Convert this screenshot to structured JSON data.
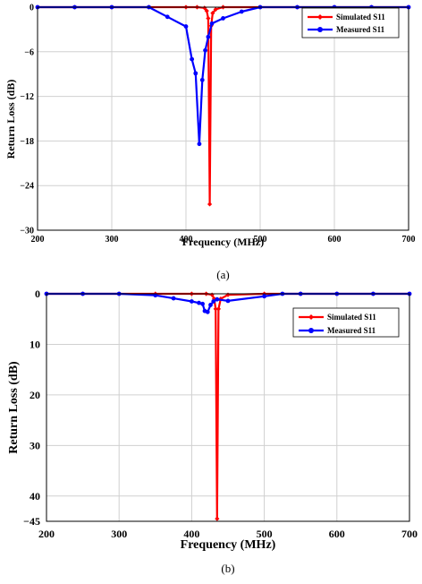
{
  "chart_data": [
    {
      "type": "line",
      "caption": "(a)",
      "xlabel": "Frequency (MHz)",
      "ylabel": "Return Loss (dB)",
      "xlim": [
        200,
        700
      ],
      "ylim": [
        -30,
        0
      ],
      "xticks": [
        200,
        300,
        400,
        500,
        600,
        700
      ],
      "yticks": [
        0,
        -6,
        -12,
        -18,
        -24,
        -30
      ],
      "grid": true,
      "legend_position": "top-right",
      "series": [
        {
          "name": "Simulated S11",
          "color": "#ff0000",
          "marker": "diamond",
          "x": [
            200,
            250,
            300,
            350,
            400,
            415,
            425,
            428,
            430,
            432,
            434,
            436,
            440,
            450,
            500,
            550,
            600,
            650,
            700
          ],
          "y": [
            0,
            0,
            0,
            0,
            0,
            0,
            -0.1,
            -0.5,
            -1.5,
            -26.5,
            -2.5,
            -0.8,
            -0.3,
            0,
            0,
            0,
            0,
            0,
            0
          ]
        },
        {
          "name": "Measured S11",
          "color": "#0000ff",
          "marker": "circle",
          "x": [
            200,
            250,
            300,
            350,
            375,
            400,
            408,
            413,
            418,
            422,
            426,
            430,
            435,
            450,
            475,
            500,
            550,
            600,
            650,
            700
          ],
          "y": [
            0,
            0,
            0,
            0,
            -1.3,
            -2.6,
            -7,
            -8.9,
            -18.4,
            -9.8,
            -5.8,
            -4,
            -2.2,
            -1.5,
            -0.6,
            0,
            0,
            0,
            0,
            0
          ]
        }
      ]
    },
    {
      "type": "line",
      "caption": "(b)",
      "xlabel": "Frequency (MHz)",
      "ylabel": "Return Loss (dB)",
      "xlim": [
        200,
        700
      ],
      "ylim": [
        0,
        45
      ],
      "ytick_direction": "increasing downward",
      "xticks": [
        200,
        300,
        400,
        500,
        600,
        700
      ],
      "yticks": [
        0,
        10,
        20,
        30,
        40,
        45
      ],
      "grid": true,
      "legend_position": "top-right",
      "series": [
        {
          "name": "Simulated S11",
          "color": "#ff0000",
          "marker": "diamond",
          "x": [
            200,
            250,
            300,
            350,
            400,
            420,
            428,
            431,
            433,
            435,
            437,
            440,
            450,
            500,
            550,
            600,
            650,
            700
          ],
          "y": [
            0,
            0,
            0,
            0,
            0,
            0,
            0.2,
            1,
            3,
            44.5,
            3,
            1,
            0.2,
            0,
            0,
            0,
            0,
            0
          ]
        },
        {
          "name": "Measured S11",
          "color": "#0000ff",
          "marker": "circle",
          "x": [
            200,
            250,
            300,
            350,
            375,
            400,
            410,
            415,
            418,
            422,
            426,
            430,
            435,
            450,
            500,
            525,
            550,
            600,
            650,
            700
          ],
          "y": [
            0,
            0,
            0,
            0.3,
            0.9,
            1.5,
            1.8,
            2,
            3.4,
            3.6,
            2.2,
            1.5,
            1.1,
            1.4,
            0.5,
            0,
            0,
            0,
            0,
            0
          ]
        }
      ]
    }
  ]
}
